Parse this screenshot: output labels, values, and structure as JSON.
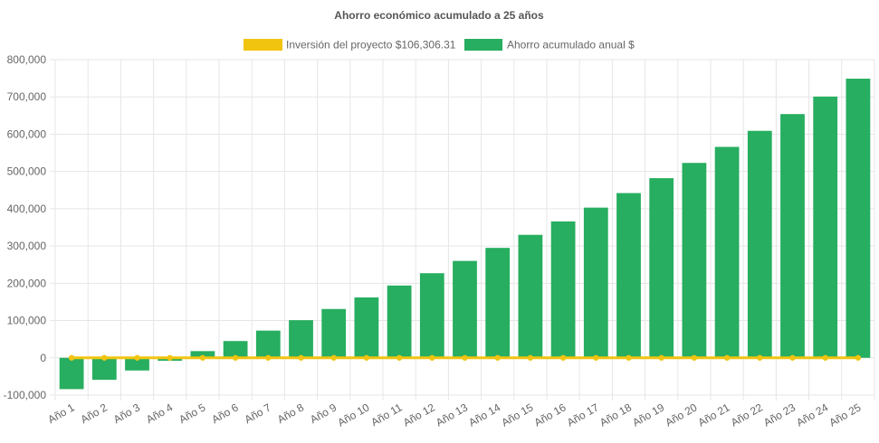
{
  "chart_data": {
    "type": "bar",
    "title": "Ahorro económico acumulado a 25 años",
    "legend_position": "top",
    "grid": true,
    "ylim": [
      -100000,
      800000
    ],
    "yticks": [
      -100000,
      0,
      100000,
      200000,
      300000,
      400000,
      500000,
      600000,
      700000,
      800000
    ],
    "ytick_labels": [
      "-100,000",
      "0",
      "100,000",
      "200,000",
      "300,000",
      "400,000",
      "500,000",
      "600,000",
      "700,000",
      "800,000"
    ],
    "categories": [
      "Año 1",
      "Año 2",
      "Año 3",
      "Año 4",
      "Año 5",
      "Año 6",
      "Año 7",
      "Año 8",
      "Año 9",
      "Año 10",
      "Año 11",
      "Año 12",
      "Año 13",
      "Año 14",
      "Año 15",
      "Año 16",
      "Año 17",
      "Año 18",
      "Año 19",
      "Año 20",
      "Año 21",
      "Año 22",
      "Año 23",
      "Año 24",
      "Año 25"
    ],
    "series": [
      {
        "name": "Inversión del proyecto $106,306.31",
        "type": "line",
        "color": "#f1c40f",
        "values": [
          0,
          0,
          0,
          0,
          0,
          0,
          0,
          0,
          0,
          0,
          0,
          0,
          0,
          0,
          0,
          0,
          0,
          0,
          0,
          0,
          0,
          0,
          0,
          0,
          0
        ]
      },
      {
        "name": "Ahorro acumulado anual $",
        "type": "bar",
        "color": "#27ae60",
        "values": [
          -84000,
          -59000,
          -34000,
          -8000,
          18000,
          45000,
          73000,
          101000,
          131000,
          162000,
          194000,
          227000,
          260000,
          295000,
          330000,
          366000,
          403000,
          442000,
          482000,
          523000,
          566000,
          609000,
          654000,
          701000,
          749000
        ]
      }
    ]
  }
}
